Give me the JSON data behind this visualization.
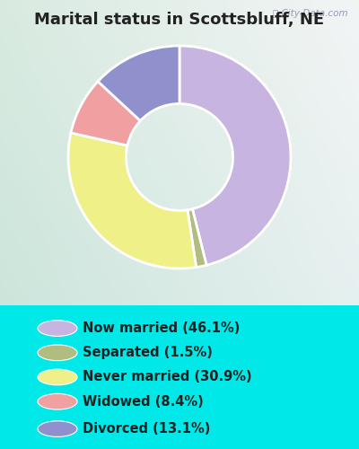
{
  "title": "Marital status in Scottsbluff, NE",
  "slices": [
    46.1,
    1.5,
    30.9,
    8.4,
    13.1
  ],
  "labels": [
    "Now married (46.1%)",
    "Separated (1.5%)",
    "Never married (30.9%)",
    "Widowed (8.4%)",
    "Divorced (13.1%)"
  ],
  "colors": [
    "#c8b4e0",
    "#b0bc80",
    "#f0f088",
    "#f0a0a0",
    "#9090cc"
  ],
  "bg_cyan": "#00e8e8",
  "chart_bg_topleft": "#d8ece0",
  "chart_bg_topright": "#e8e8f0",
  "chart_bg_bottomleft": "#c8e8d8",
  "title_fontsize": 13,
  "title_color": "#222222",
  "legend_fontsize": 10.5,
  "watermark": "City-Data.com",
  "start_angle": 90,
  "donut_width": 0.52
}
